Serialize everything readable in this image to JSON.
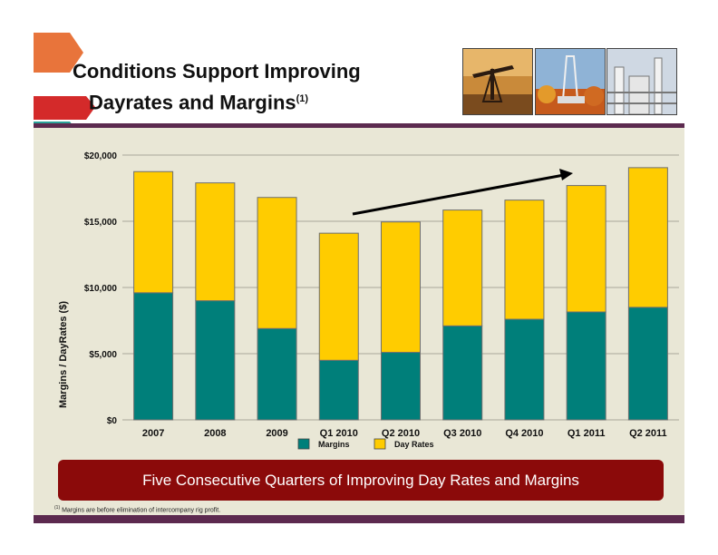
{
  "slide": {
    "title_line1": "Conditions Support Improving",
    "title_line2": "Dayrates and Margins",
    "title_sup": "(1)",
    "banner": "Five Consecutive Quarters of Improving Day Rates and Margins",
    "footnote_sup": "(1)",
    "footnote": "Margins are before elimination of intercompany rig profit."
  },
  "colors": {
    "margins": "#007f7a",
    "day_rates": "#ffcc00",
    "panel": "#e9e7d6",
    "rule": "#5c2a4f",
    "banner": "#8b0a0a"
  },
  "chart_data": {
    "type": "bar",
    "stacked": true,
    "categories": [
      "2007",
      "2008",
      "2009",
      "Q1 2010",
      "Q2 2010",
      "Q3 2010",
      "Q4 2010",
      "Q1 2011",
      "Q2 2011"
    ],
    "series": [
      {
        "name": "Margins",
        "color": "#007f7a",
        "values": [
          9600,
          9000,
          6900,
          4500,
          5100,
          7100,
          7600,
          8150,
          8500
        ]
      },
      {
        "name": "Day Rates",
        "color": "#ffcc00",
        "values": [
          9150,
          8900,
          9900,
          9600,
          9850,
          8750,
          9000,
          9550,
          10550
        ]
      }
    ],
    "ylabel": "Margins / DayRates ($)",
    "yticks": [
      "$0",
      "$5,000",
      "$10,000",
      "$15,000",
      "$20,000"
    ],
    "ylim": [
      0,
      20000
    ],
    "grid": true,
    "legend": "bottom",
    "annotation": "upward trend arrow from Q1 2010 to Q2 2011"
  }
}
